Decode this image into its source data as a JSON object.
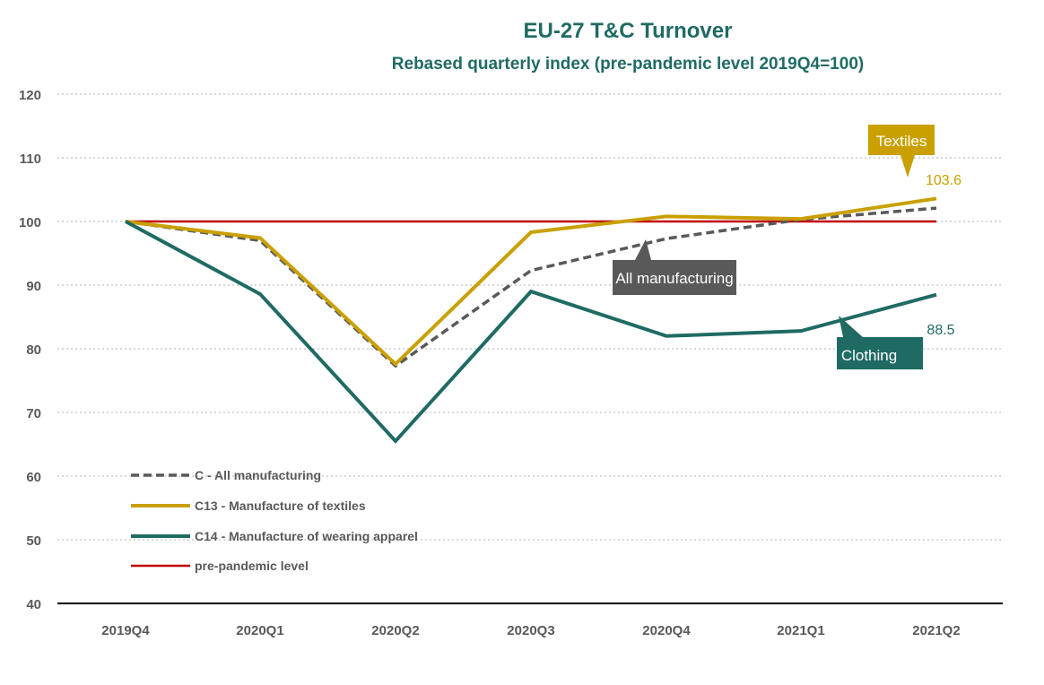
{
  "chart_data": {
    "type": "line",
    "title": "EU-27 T&C Turnover",
    "subtitle": "Rebased quarterly index (pre-pandemic level 2019Q4=100)",
    "xlabel": "",
    "ylabel": "",
    "categories": [
      "2019Q4",
      "2020Q1",
      "2020Q2",
      "2020Q3",
      "2020Q4",
      "2021Q1",
      "2021Q2"
    ],
    "ylim": [
      40,
      120
    ],
    "yticks": [
      "40",
      "50",
      "60",
      "70",
      "80",
      "90",
      "100",
      "110",
      "120"
    ],
    "grid": "horizontal dotted",
    "legend_position": "bottom-left",
    "series": [
      {
        "name": "C - All manufacturing",
        "color": "#595959",
        "style": "dashed",
        "values": [
          100,
          97,
          77.3,
          92.3,
          97.3,
          100.3,
          102.1
        ]
      },
      {
        "name": "C13 - Manufacture of textiles",
        "color": "#c9a000",
        "style": "solid",
        "values": [
          100,
          97.4,
          77.6,
          98.3,
          100.8,
          100.4,
          103.6
        ]
      },
      {
        "name": "C14 - Manufacture of wearing apparel",
        "color": "#1f6b64",
        "style": "solid",
        "values": [
          100,
          88.6,
          65.5,
          89.0,
          82.0,
          82.8,
          88.5
        ]
      },
      {
        "name": "pre-pandemic level",
        "color": "#c00000",
        "style": "solid",
        "values": [
          100,
          100,
          100,
          100,
          100,
          100,
          100
        ]
      }
    ],
    "annotations": [
      {
        "text": "Textiles",
        "color": "#c9a000"
      },
      {
        "text": "All manufacturing",
        "color": "#595959"
      },
      {
        "text": "Clothing",
        "color": "#1f6b64"
      }
    ],
    "value_labels": [
      {
        "text": "103.6",
        "color": "#c9a000"
      },
      {
        "text": "88.5",
        "color": "#1f6b64"
      }
    ]
  }
}
